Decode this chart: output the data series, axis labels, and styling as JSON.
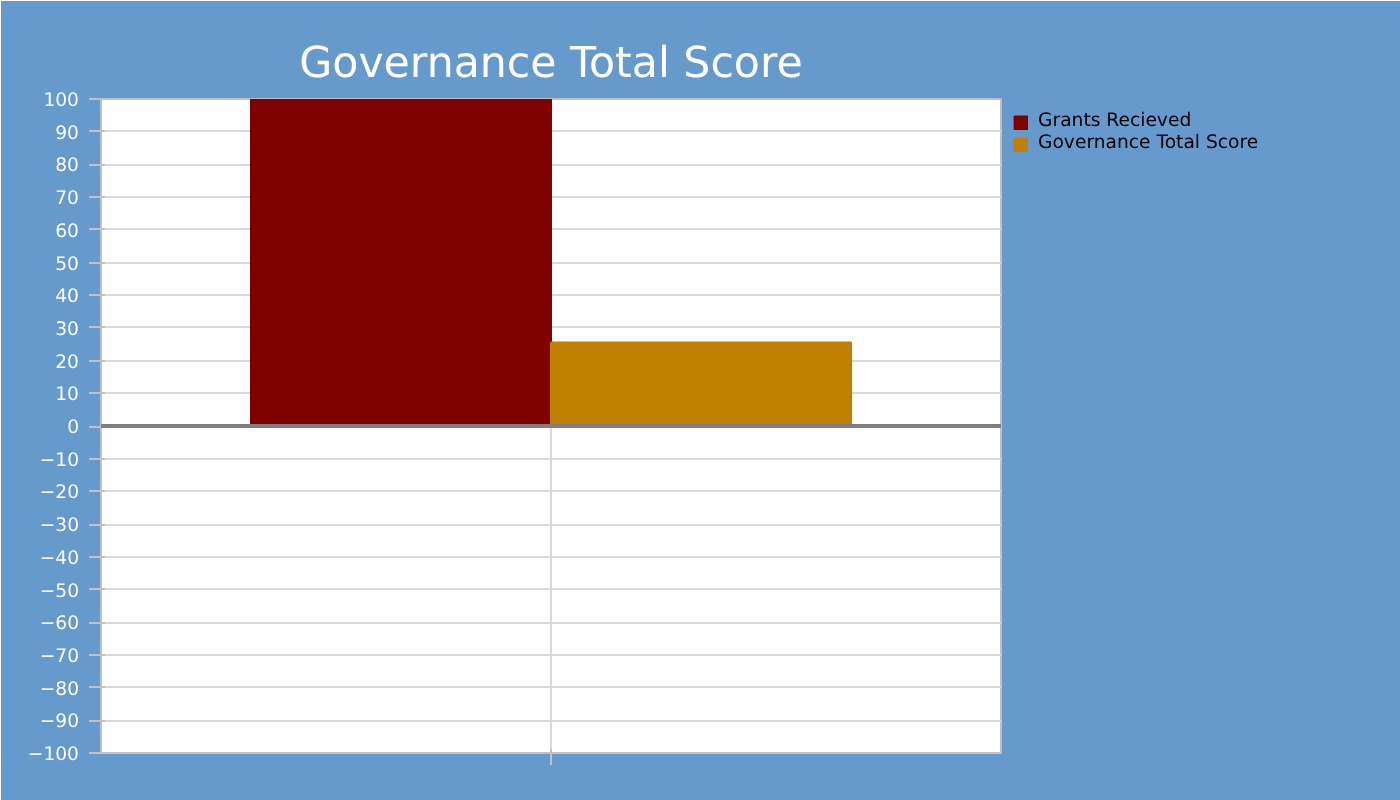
{
  "chart_data": {
    "type": "bar",
    "title": "Governance Total Score",
    "categories": [
      null
    ],
    "series": [
      {
        "name": "Grants Recieved",
        "color": "#800000",
        "values": [
          100
        ]
      },
      {
        "name": "Governance Total Score",
        "color": "#c08000",
        "values": [
          25.5
        ]
      }
    ],
    "ylim": [
      -100,
      100
    ],
    "yticks": [
      -100,
      -90,
      -80,
      -70,
      -60,
      -50,
      -40,
      -30,
      -20,
      -10,
      0,
      10,
      20,
      30,
      40,
      50,
      60,
      70,
      80,
      90,
      100
    ],
    "grid": true,
    "legend": "right",
    "ref_lines": [
      {
        "axis": "y",
        "value": 0,
        "color": "#808080"
      }
    ]
  }
}
